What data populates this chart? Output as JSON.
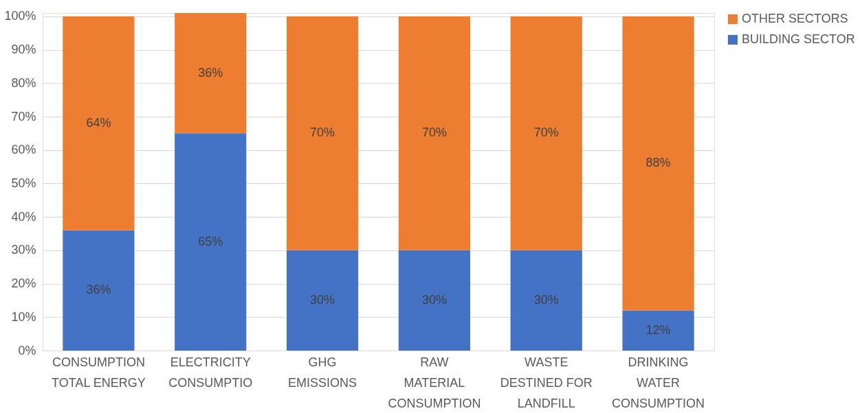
{
  "chart_data": {
    "type": "bar",
    "stacked": true,
    "categories": [
      "CONSUMPTION\nTOTAL ENERGY",
      "ELECTRICITY\nCONSUMPTIO",
      "GHG\nEMISSIONS",
      "RAW\nMATERIAL\nCONSUMPTION",
      "WASTE\nDESTINED FOR\nLANDFILL",
      "DRINKING\nWATER\nCONSUMPTION"
    ],
    "series": [
      {
        "name": "BUILDING SECTOR",
        "color": "#4472c4",
        "values": [
          36,
          65,
          30,
          30,
          30,
          12
        ],
        "value_labels": [
          "36%",
          "65%",
          "30%",
          "30%",
          "30%",
          "12%"
        ]
      },
      {
        "name": "OTHER SECTORS",
        "color": "#ed7d31",
        "values": [
          64,
          36,
          70,
          70,
          70,
          88
        ],
        "value_labels": [
          "64%",
          "36%",
          "70%",
          "70%",
          "70%",
          "88%"
        ]
      }
    ],
    "ylim": [
      0,
      101
    ],
    "yticks": [
      {
        "value": 0,
        "label": "0%"
      },
      {
        "value": 10,
        "label": "10%"
      },
      {
        "value": 20,
        "label": "20%"
      },
      {
        "value": 30,
        "label": "30%"
      },
      {
        "value": 40,
        "label": "40%"
      },
      {
        "value": 50,
        "label": "50%"
      },
      {
        "value": 60,
        "label": "60%"
      },
      {
        "value": 70,
        "label": "70%"
      },
      {
        "value": 80,
        "label": "80%"
      },
      {
        "value": 90,
        "label": "90%"
      },
      {
        "value": 100,
        "label": "100%"
      }
    ],
    "grid": "y",
    "legend": "right"
  }
}
